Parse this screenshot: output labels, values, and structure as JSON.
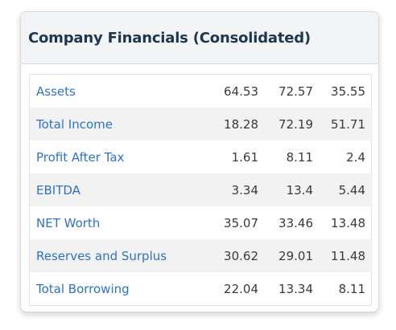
{
  "card": {
    "title": "Company Financials (Consolidated)"
  },
  "rows": [
    {
      "label": "Assets",
      "values": [
        "64.53",
        "72.57",
        "35.55"
      ]
    },
    {
      "label": "Total Income",
      "values": [
        "18.28",
        "72.19",
        "51.71"
      ]
    },
    {
      "label": "Profit After Tax",
      "values": [
        "1.61",
        "8.11",
        "2.4"
      ]
    },
    {
      "label": "EBITDA",
      "values": [
        "3.34",
        "13.4",
        "5.44"
      ]
    },
    {
      "label": "NET Worth",
      "values": [
        "35.07",
        "33.46",
        "13.48"
      ]
    },
    {
      "label": "Reserves and Surplus",
      "values": [
        "30.62",
        "29.01",
        "11.48"
      ]
    },
    {
      "label": "Total Borrowing",
      "values": [
        "22.04",
        "13.34",
        "8.11"
      ]
    }
  ],
  "colors": {
    "label_link": "#2f72c8",
    "title": "#1f3650",
    "header_bg": "#f3f4f6",
    "stripe_bg": "#f2f2f2"
  }
}
